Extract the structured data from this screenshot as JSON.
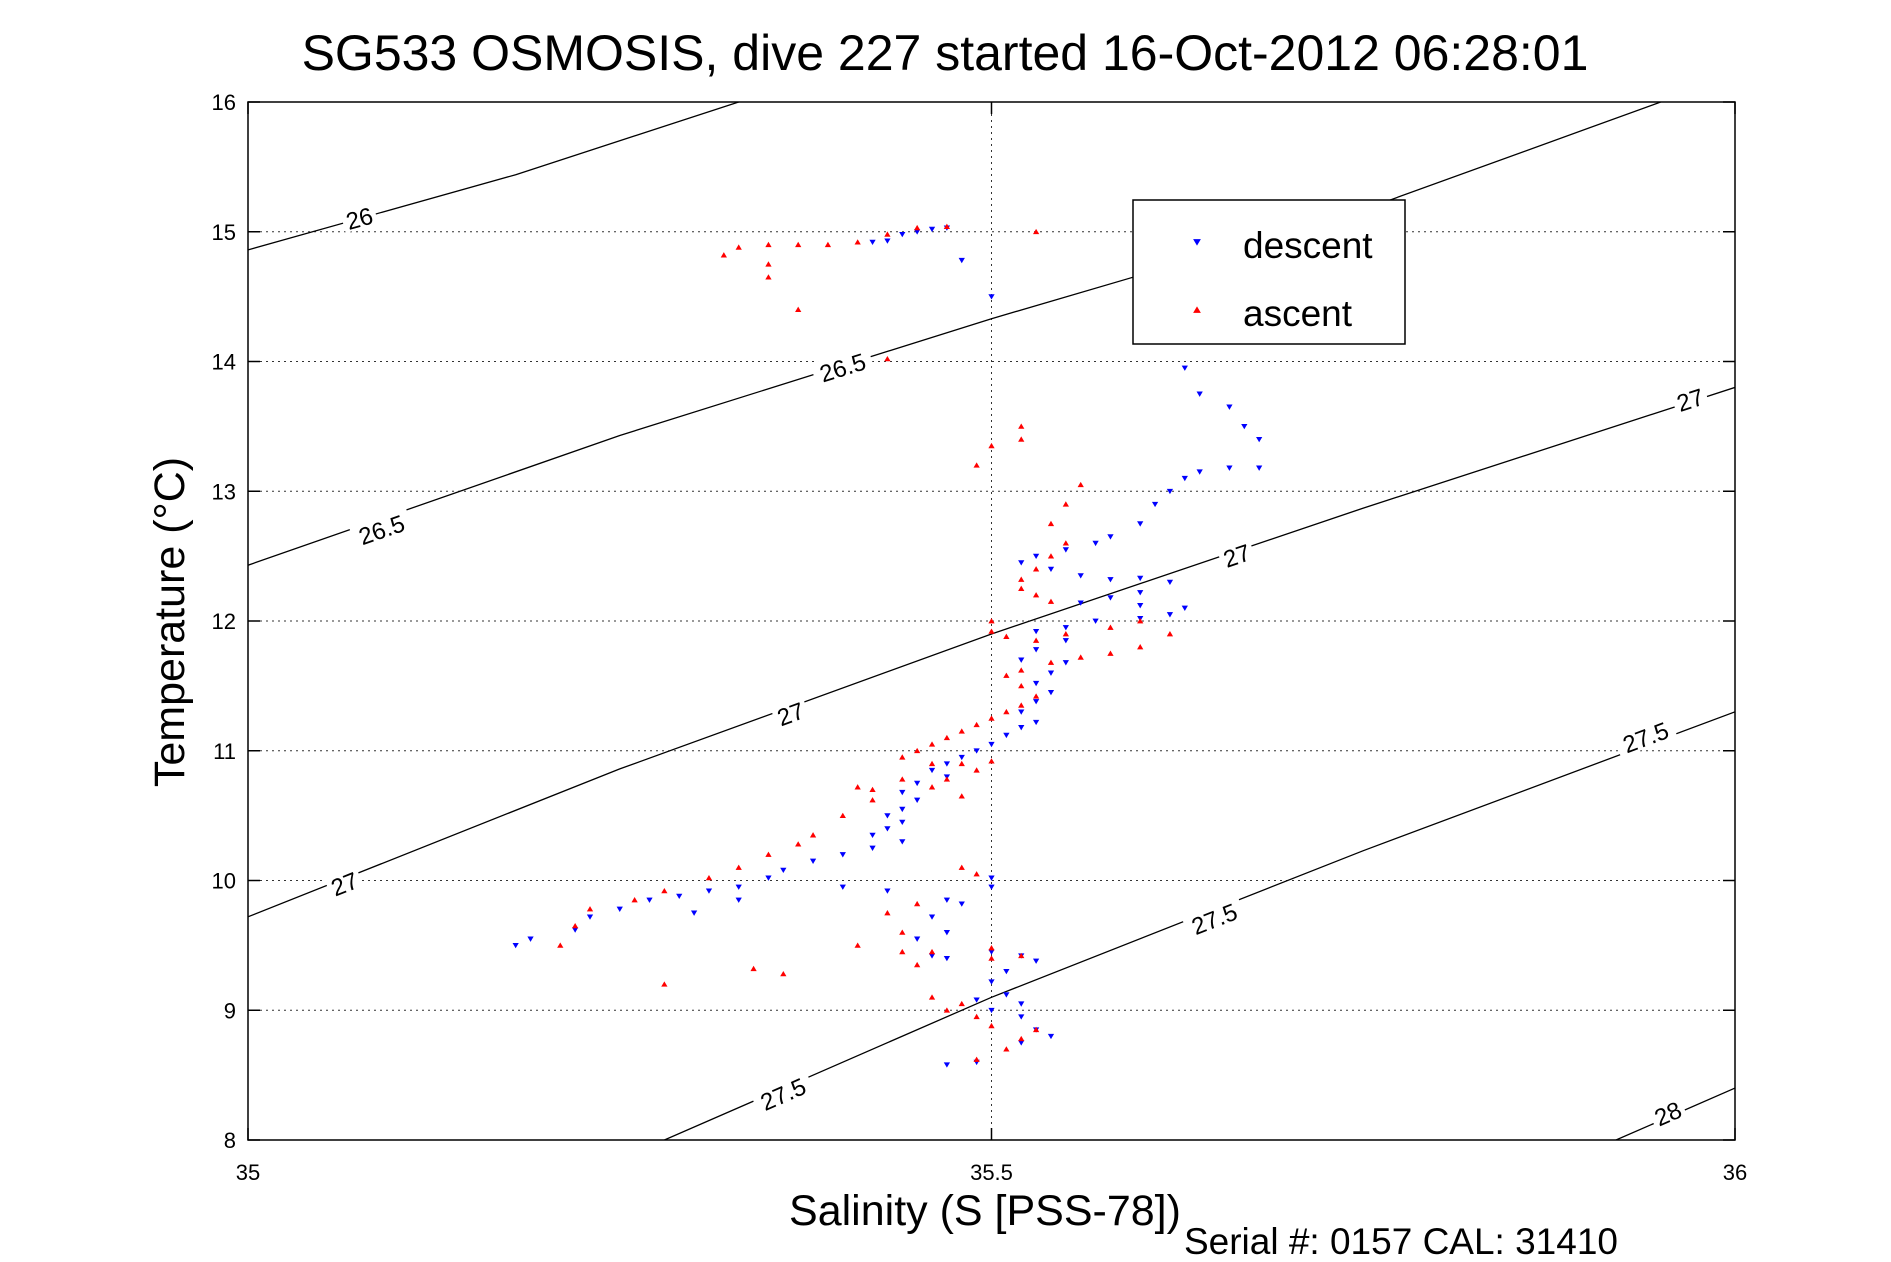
{
  "chart_data": {
    "type": "scatter",
    "title": "SG533 OSMOSIS, dive 227 started 16-Oct-2012 06:28:01",
    "xlabel": "Salinity (S [PSS-78])",
    "ylabel": "Temperature (°C)",
    "xlim": [
      35,
      36
    ],
    "ylim": [
      8,
      16
    ],
    "xticks": [
      35,
      35.5,
      36
    ],
    "xtick_labels": [
      "35",
      "35.5",
      "36"
    ],
    "yticks": [
      8,
      9,
      10,
      11,
      12,
      13,
      14,
      15,
      16
    ],
    "ytick_labels": [
      "8",
      "9",
      "10",
      "11",
      "12",
      "13",
      "14",
      "15",
      "16"
    ],
    "grid": true,
    "legend_position": "top-right",
    "footer": "Serial #: 0157  CAL: 31410",
    "density_contours": [
      {
        "label": "26",
        "points": [
          [
            35.0,
            14.86
          ],
          [
            35.18,
            15.44
          ],
          [
            35.33,
            16.0
          ]
        ],
        "label_at": [
          [
            35.075,
            15.1
          ]
        ]
      },
      {
        "label": "26.5",
        "points": [
          [
            35.0,
            12.43
          ],
          [
            35.25,
            13.43
          ],
          [
            35.5,
            14.33
          ],
          [
            35.75,
            15.17
          ],
          [
            35.95,
            16.0
          ]
        ],
        "label_at": [
          [
            35.09,
            12.7
          ],
          [
            35.4,
            13.95
          ]
        ]
      },
      {
        "label": "27",
        "points": [
          [
            35.0,
            9.72
          ],
          [
            35.25,
            10.86
          ],
          [
            35.5,
            11.9
          ],
          [
            35.75,
            12.87
          ],
          [
            36.0,
            13.8
          ]
        ],
        "label_at": [
          [
            35.065,
            9.97
          ],
          [
            35.365,
            11.28
          ],
          [
            35.665,
            12.5
          ],
          [
            35.97,
            13.7
          ]
        ]
      },
      {
        "label": "27.5",
        "points": [
          [
            35.28,
            8.0
          ],
          [
            35.5,
            9.1
          ],
          [
            35.75,
            10.23
          ],
          [
            36.0,
            11.3
          ]
        ],
        "label_at": [
          [
            35.36,
            8.35
          ],
          [
            35.65,
            9.7
          ],
          [
            35.94,
            11.1
          ]
        ]
      },
      {
        "label": "28",
        "points": [
          [
            35.92,
            8.0
          ],
          [
            36.0,
            8.4
          ]
        ],
        "label_at": [
          [
            35.955,
            8.2
          ]
        ]
      }
    ],
    "series": [
      {
        "name": "descent",
        "color": "#0000ff",
        "marker": "triangle-down",
        "points": [
          [
            35.46,
            15.02
          ],
          [
            35.44,
            14.98
          ],
          [
            35.43,
            14.93
          ],
          [
            35.45,
            15.0
          ],
          [
            35.47,
            15.03
          ],
          [
            35.42,
            14.92
          ],
          [
            35.48,
            14.78
          ],
          [
            35.5,
            14.5
          ],
          [
            35.63,
            13.95
          ],
          [
            35.64,
            13.75
          ],
          [
            35.66,
            13.65
          ],
          [
            35.67,
            13.5
          ],
          [
            35.68,
            13.4
          ],
          [
            35.68,
            13.18
          ],
          [
            35.66,
            13.18
          ],
          [
            35.64,
            13.15
          ],
          [
            35.63,
            13.1
          ],
          [
            35.62,
            13.0
          ],
          [
            35.61,
            12.9
          ],
          [
            35.6,
            12.75
          ],
          [
            35.58,
            12.65
          ],
          [
            35.57,
            12.6
          ],
          [
            35.55,
            12.55
          ],
          [
            35.53,
            12.5
          ],
          [
            35.52,
            12.45
          ],
          [
            35.54,
            12.4
          ],
          [
            35.56,
            12.35
          ],
          [
            35.58,
            12.32
          ],
          [
            35.6,
            12.33
          ],
          [
            35.62,
            12.3
          ],
          [
            35.6,
            12.22
          ],
          [
            35.58,
            12.18
          ],
          [
            35.56,
            12.14
          ],
          [
            35.6,
            12.12
          ],
          [
            35.63,
            12.1
          ],
          [
            35.62,
            12.05
          ],
          [
            35.6,
            12.02
          ],
          [
            35.57,
            12.0
          ],
          [
            35.55,
            11.95
          ],
          [
            35.53,
            11.92
          ],
          [
            35.55,
            11.85
          ],
          [
            35.53,
            11.78
          ],
          [
            35.52,
            11.7
          ],
          [
            35.55,
            11.68
          ],
          [
            35.54,
            11.6
          ],
          [
            35.53,
            11.52
          ],
          [
            35.54,
            11.45
          ],
          [
            35.53,
            11.38
          ],
          [
            35.52,
            11.3
          ],
          [
            35.53,
            11.22
          ],
          [
            35.52,
            11.18
          ],
          [
            35.51,
            11.12
          ],
          [
            35.5,
            11.05
          ],
          [
            35.49,
            11.0
          ],
          [
            35.48,
            10.95
          ],
          [
            35.47,
            10.9
          ],
          [
            35.46,
            10.85
          ],
          [
            35.47,
            10.8
          ],
          [
            35.45,
            10.75
          ],
          [
            35.44,
            10.68
          ],
          [
            35.45,
            10.62
          ],
          [
            35.44,
            10.55
          ],
          [
            35.43,
            10.5
          ],
          [
            35.44,
            10.45
          ],
          [
            35.43,
            10.4
          ],
          [
            35.42,
            10.35
          ],
          [
            35.44,
            10.3
          ],
          [
            35.42,
            10.25
          ],
          [
            35.4,
            10.2
          ],
          [
            35.38,
            10.15
          ],
          [
            35.36,
            10.08
          ],
          [
            35.35,
            10.02
          ],
          [
            35.33,
            9.95
          ],
          [
            35.31,
            9.92
          ],
          [
            35.29,
            9.88
          ],
          [
            35.27,
            9.85
          ],
          [
            35.25,
            9.78
          ],
          [
            35.23,
            9.72
          ],
          [
            35.22,
            9.62
          ],
          [
            35.19,
            9.55
          ],
          [
            35.18,
            9.5
          ],
          [
            35.3,
            9.75
          ],
          [
            35.33,
            9.85
          ],
          [
            35.4,
            9.95
          ],
          [
            35.43,
            9.92
          ],
          [
            35.47,
            9.85
          ],
          [
            35.5,
            10.02
          ],
          [
            35.5,
            9.95
          ],
          [
            35.48,
            9.82
          ],
          [
            35.46,
            9.72
          ],
          [
            35.47,
            9.6
          ],
          [
            35.45,
            9.55
          ],
          [
            35.46,
            9.42
          ],
          [
            35.47,
            9.4
          ],
          [
            35.5,
            9.45
          ],
          [
            35.52,
            9.42
          ],
          [
            35.53,
            9.38
          ],
          [
            35.51,
            9.3
          ],
          [
            35.5,
            9.22
          ],
          [
            35.51,
            9.12
          ],
          [
            35.52,
            9.05
          ],
          [
            35.5,
            9.0
          ],
          [
            35.49,
            9.08
          ],
          [
            35.52,
            8.95
          ],
          [
            35.53,
            8.85
          ],
          [
            35.54,
            8.8
          ],
          [
            35.52,
            8.75
          ],
          [
            35.49,
            8.6
          ],
          [
            35.47,
            8.58
          ]
        ]
      },
      {
        "name": "ascent",
        "color": "#ff0000",
        "marker": "triangle-up",
        "points": [
          [
            35.47,
            15.04
          ],
          [
            35.45,
            15.03
          ],
          [
            35.43,
            14.98
          ],
          [
            35.41,
            14.92
          ],
          [
            35.39,
            14.9
          ],
          [
            35.37,
            14.9
          ],
          [
            35.35,
            14.9
          ],
          [
            35.33,
            14.88
          ],
          [
            35.32,
            14.82
          ],
          [
            35.35,
            14.75
          ],
          [
            35.35,
            14.65
          ],
          [
            35.37,
            14.4
          ],
          [
            35.53,
            15.0
          ],
          [
            35.43,
            14.02
          ],
          [
            35.52,
            13.5
          ],
          [
            35.5,
            13.35
          ],
          [
            35.52,
            13.4
          ],
          [
            35.49,
            13.2
          ],
          [
            35.56,
            13.05
          ],
          [
            35.55,
            12.9
          ],
          [
            35.54,
            12.75
          ],
          [
            35.55,
            12.6
          ],
          [
            35.54,
            12.5
          ],
          [
            35.53,
            12.4
          ],
          [
            35.52,
            12.32
          ],
          [
            35.52,
            12.25
          ],
          [
            35.53,
            12.2
          ],
          [
            35.54,
            12.15
          ],
          [
            35.5,
            12.0
          ],
          [
            35.5,
            11.92
          ],
          [
            35.51,
            11.88
          ],
          [
            35.53,
            11.85
          ],
          [
            35.55,
            11.9
          ],
          [
            35.58,
            11.95
          ],
          [
            35.6,
            12.0
          ],
          [
            35.62,
            11.9
          ],
          [
            35.6,
            11.8
          ],
          [
            35.58,
            11.75
          ],
          [
            35.56,
            11.72
          ],
          [
            35.54,
            11.68
          ],
          [
            35.52,
            11.62
          ],
          [
            35.51,
            11.58
          ],
          [
            35.52,
            11.5
          ],
          [
            35.53,
            11.42
          ],
          [
            35.52,
            11.35
          ],
          [
            35.51,
            11.3
          ],
          [
            35.5,
            11.25
          ],
          [
            35.49,
            11.2
          ],
          [
            35.48,
            11.15
          ],
          [
            35.47,
            11.1
          ],
          [
            35.46,
            11.05
          ],
          [
            35.45,
            11.0
          ],
          [
            35.44,
            10.95
          ],
          [
            35.46,
            10.9
          ],
          [
            35.48,
            10.9
          ],
          [
            35.5,
            10.92
          ],
          [
            35.49,
            10.85
          ],
          [
            35.47,
            10.78
          ],
          [
            35.46,
            10.72
          ],
          [
            35.48,
            10.65
          ],
          [
            35.42,
            10.62
          ],
          [
            35.42,
            10.7
          ],
          [
            35.44,
            10.78
          ],
          [
            35.41,
            10.72
          ],
          [
            35.4,
            10.5
          ],
          [
            35.38,
            10.35
          ],
          [
            35.37,
            10.28
          ],
          [
            35.35,
            10.2
          ],
          [
            35.33,
            10.1
          ],
          [
            35.31,
            10.02
          ],
          [
            35.28,
            9.92
          ],
          [
            35.26,
            9.85
          ],
          [
            35.23,
            9.78
          ],
          [
            35.22,
            9.65
          ],
          [
            35.21,
            9.5
          ],
          [
            35.34,
            9.32
          ],
          [
            35.36,
            9.28
          ],
          [
            35.28,
            9.2
          ],
          [
            35.41,
            9.5
          ],
          [
            35.44,
            9.45
          ],
          [
            35.46,
            9.45
          ],
          [
            35.45,
            9.35
          ],
          [
            35.44,
            9.6
          ],
          [
            35.43,
            9.75
          ],
          [
            35.45,
            9.82
          ],
          [
            35.48,
            10.1
          ],
          [
            35.49,
            10.05
          ],
          [
            35.5,
            9.48
          ],
          [
            35.52,
            9.42
          ],
          [
            35.5,
            9.4
          ],
          [
            35.48,
            9.05
          ],
          [
            35.47,
            9.0
          ],
          [
            35.46,
            9.1
          ],
          [
            35.49,
            8.95
          ],
          [
            35.5,
            8.88
          ],
          [
            35.52,
            8.78
          ],
          [
            35.53,
            8.85
          ],
          [
            35.51,
            8.7
          ],
          [
            35.49,
            8.62
          ]
        ]
      }
    ]
  }
}
